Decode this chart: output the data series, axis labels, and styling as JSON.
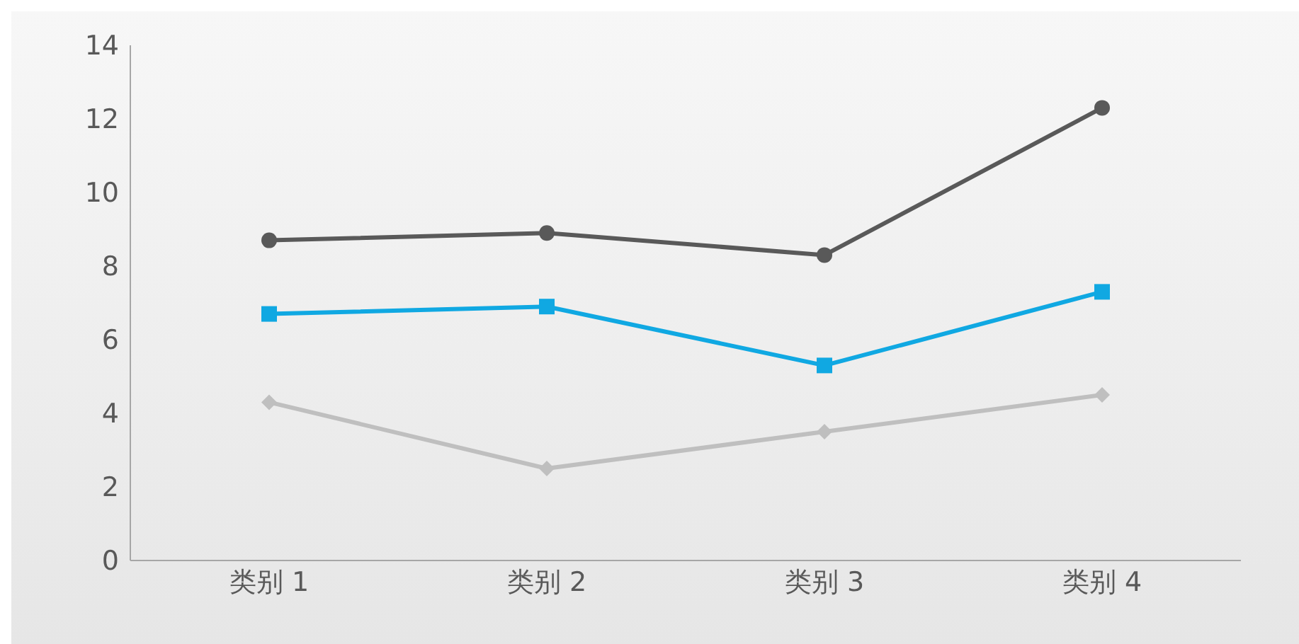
{
  "chart_data": {
    "type": "line",
    "categories": [
      "类别 1",
      "类别 2",
      "类别 3",
      "类别 4"
    ],
    "series": [
      {
        "color": "#595959",
        "marker": "circle",
        "values": [
          8.7,
          8.9,
          8.3,
          12.3
        ]
      },
      {
        "color": "#10a8e2",
        "marker": "square",
        "values": [
          6.7,
          6.9,
          5.3,
          7.3
        ]
      },
      {
        "color": "#bfbfbf",
        "marker": "diamond",
        "values": [
          4.3,
          2.5,
          3.5,
          4.5
        ]
      }
    ],
    "ylim": [
      0,
      14
    ],
    "yticks": [
      0,
      2,
      4,
      6,
      8,
      10,
      12,
      14
    ],
    "grid": false,
    "legend": false
  }
}
